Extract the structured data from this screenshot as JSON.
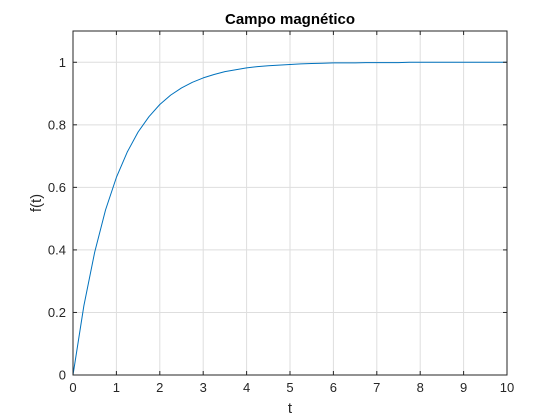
{
  "chart_data": {
    "type": "line",
    "title": "Campo magnético",
    "xlabel": "t",
    "ylabel": "f(t)",
    "xlim": [
      0,
      10
    ],
    "ylim": [
      0,
      1.1
    ],
    "xticks": [
      0,
      1,
      2,
      3,
      4,
      5,
      6,
      7,
      8,
      9,
      10
    ],
    "yticks": [
      0,
      0.2,
      0.4,
      0.6,
      0.8,
      1
    ],
    "xtick_labels": [
      "0",
      "1",
      "2",
      "3",
      "4",
      "5",
      "6",
      "7",
      "8",
      "9",
      "10"
    ],
    "ytick_labels": [
      "0",
      "0.2",
      "0.4",
      "0.6",
      "0.8",
      "1"
    ],
    "grid": true,
    "colors": {
      "line": "#0072BD",
      "grid": "#dedede",
      "axis": "#262626"
    },
    "series": [
      {
        "x": [
          0,
          0.25,
          0.5,
          0.75,
          1,
          1.25,
          1.5,
          1.75,
          2,
          2.25,
          2.5,
          2.75,
          3,
          3.25,
          3.5,
          3.75,
          4,
          4.25,
          4.5,
          4.75,
          5,
          5.25,
          5.5,
          5.75,
          6,
          6.25,
          6.5,
          6.75,
          7,
          7.25,
          7.5,
          7.75,
          8,
          8.25,
          8.5,
          8.75,
          9,
          9.25,
          9.5,
          9.75,
          10
        ],
        "y": [
          0,
          0.221,
          0.393,
          0.528,
          0.632,
          0.713,
          0.777,
          0.826,
          0.865,
          0.895,
          0.918,
          0.936,
          0.95,
          0.961,
          0.97,
          0.976,
          0.982,
          0.986,
          0.989,
          0.991,
          0.993,
          0.995,
          0.996,
          0.997,
          0.998,
          0.998,
          0.998,
          0.999,
          0.999,
          0.999,
          0.999,
          1.0,
          1.0,
          1.0,
          1.0,
          1.0,
          1.0,
          1.0,
          1.0,
          1.0,
          1.0
        ]
      }
    ]
  }
}
